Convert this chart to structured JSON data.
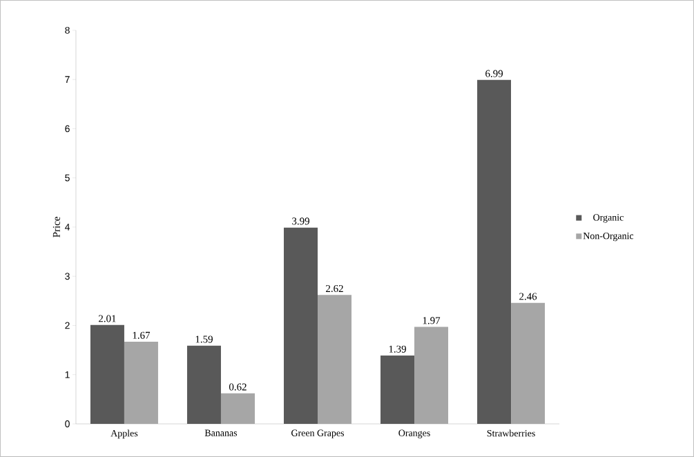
{
  "chart_data": {
    "type": "bar",
    "ylabel": "Price",
    "categories": [
      "Apples",
      "Bananas",
      "Green Grapes",
      "Oranges",
      "Strawberries"
    ],
    "series": [
      {
        "name": "Organic",
        "color": "#595959",
        "values": [
          2.01,
          1.59,
          3.99,
          1.39,
          6.99
        ]
      },
      {
        "name": "Non-Organic",
        "color": "#a6a6a6",
        "values": [
          1.67,
          0.62,
          2.62,
          1.97,
          2.46
        ]
      }
    ],
    "ylim": [
      0,
      8
    ],
    "yticks": [
      0,
      1,
      2,
      3,
      4,
      5,
      6,
      7,
      8
    ],
    "data_labels": true,
    "legend": "right",
    "grid": false
  }
}
